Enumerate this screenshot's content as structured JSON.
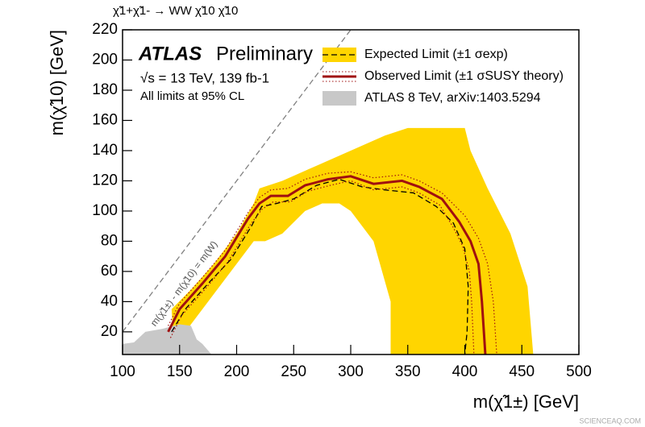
{
  "chart_data": {
    "type": "contour",
    "title": "χ̃1+χ̃1- → WW χ̃10 χ̃10",
    "experiment": "ATLAS",
    "status": "Preliminary",
    "energy_label": "√s = 13 TeV, 139 fb-1",
    "cl_label": "All limits at 95% CL",
    "x_label": "m(χ̃1±) [GeV]",
    "y_label": "m(χ̃10) [GeV]",
    "watermark": "SCIENCEAQ.COM",
    "xlim": [
      100,
      500
    ],
    "ylim": [
      5,
      220
    ],
    "xticks": [
      100,
      150,
      200,
      250,
      300,
      350,
      400,
      450,
      500
    ],
    "yticks": [
      20,
      40,
      60,
      80,
      100,
      120,
      140,
      160,
      180,
      200,
      220
    ],
    "diagonal": {
      "label": "m(χ̃1±) - m(χ̃10) = m(W)",
      "color": "#808080",
      "x": [
        100,
        300
      ],
      "values": [
        20,
        220
      ]
    },
    "series": [
      {
        "name": "ATLAS 8 TeV, arXiv:1403.5294",
        "color": "#c8c8c8",
        "style": "fill",
        "x": [
          100,
          100,
          110,
          120,
          135,
          150,
          160,
          165,
          170,
          178
        ],
        "values": [
          5,
          12,
          13,
          20,
          22,
          25,
          24,
          15,
          12,
          5
        ]
      },
      {
        "name": "Expected Limit (±1 σexp)",
        "color": "#000000",
        "style": "dashed",
        "band": {
          "color": "#ffd500",
          "x": [
            143,
            160,
            180,
            200,
            215,
            220,
            240,
            270,
            300,
            330,
            350,
            375,
            400,
            405,
            420,
            440,
            455,
            460,
            335,
            335,
            320,
            300,
            290,
            275,
            260,
            240,
            225,
            215,
            200,
            180,
            160,
            150,
            145
          ],
          "values": [
            35,
            48,
            65,
            85,
            105,
            115,
            120,
            130,
            140,
            150,
            155,
            155,
            155,
            140,
            115,
            85,
            50,
            5,
            5,
            40,
            80,
            100,
            105,
            105,
            100,
            85,
            80,
            80,
            65,
            45,
            25,
            15,
            10
          ]
        },
        "x": [
          143,
          155,
          175,
          195,
          213,
          222,
          235,
          250,
          270,
          290,
          310,
          330,
          355,
          375,
          390,
          400,
          403,
          402,
          400
        ],
        "values": [
          20,
          35,
          52,
          68,
          90,
          103,
          105,
          108,
          117,
          121,
          116,
          114,
          112,
          103,
          92,
          75,
          50,
          20,
          5
        ]
      },
      {
        "name": "Observed Limit (±1 σSUSY theory)",
        "color": "#a01010",
        "style": "solid",
        "x": [
          140,
          150,
          170,
          190,
          210,
          220,
          230,
          245,
          260,
          280,
          300,
          320,
          345,
          360,
          380,
          395,
          405,
          412,
          415,
          418
        ],
        "values": [
          20,
          35,
          52,
          70,
          95,
          105,
          110,
          110,
          117,
          121,
          123,
          118,
          120,
          116,
          108,
          93,
          80,
          65,
          40,
          5
        ],
        "theory_up": {
          "x": [
            140,
            150,
            170,
            190,
            210,
            220,
            230,
            245,
            260,
            280,
            300,
            320,
            345,
            360,
            380,
            400,
            412,
            420,
            425,
            428
          ],
          "values": [
            24,
            39,
            56,
            74,
            99,
            109,
            114,
            115,
            121,
            125,
            126,
            122,
            124,
            120,
            112,
            97,
            82,
            65,
            40,
            5
          ]
        },
        "theory_down": {
          "x": [
            142,
            152,
            172,
            192,
            212,
            222,
            232,
            247,
            262,
            282,
            300,
            320,
            345,
            360,
            378,
            390,
            398,
            404,
            406,
            408
          ],
          "values": [
            16,
            31,
            48,
            66,
            91,
            101,
            106,
            106,
            113,
            117,
            120,
            114,
            116,
            112,
            104,
            89,
            77,
            60,
            40,
            5
          ]
        }
      }
    ]
  }
}
